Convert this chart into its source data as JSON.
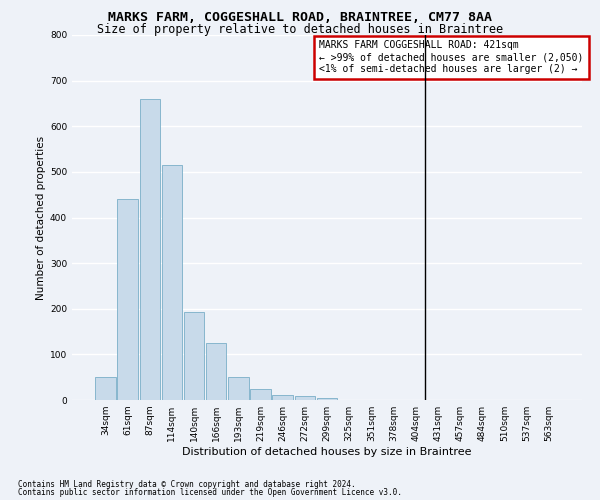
{
  "title": "MARKS FARM, COGGESHALL ROAD, BRAINTREE, CM77 8AA",
  "subtitle": "Size of property relative to detached houses in Braintree",
  "xlabel": "Distribution of detached houses by size in Braintree",
  "ylabel": "Number of detached properties",
  "footnote1": "Contains HM Land Registry data © Crown copyright and database right 2024.",
  "footnote2": "Contains public sector information licensed under the Open Government Licence v3.0.",
  "categories": [
    "34sqm",
    "61sqm",
    "87sqm",
    "114sqm",
    "140sqm",
    "166sqm",
    "193sqm",
    "219sqm",
    "246sqm",
    "272sqm",
    "299sqm",
    "325sqm",
    "351sqm",
    "378sqm",
    "404sqm",
    "431sqm",
    "457sqm",
    "484sqm",
    "510sqm",
    "537sqm",
    "563sqm"
  ],
  "values": [
    50,
    440,
    660,
    515,
    193,
    125,
    50,
    25,
    10,
    8,
    5,
    0,
    0,
    0,
    0,
    0,
    0,
    0,
    0,
    0,
    0
  ],
  "bar_color": "#c8daea",
  "bar_edge_color": "#7aafc8",
  "annotation_text": "MARKS FARM COGGESHALL ROAD: 421sqm\n← >99% of detached houses are smaller (2,050)\n<1% of semi-detached houses are larger (2) →",
  "annotation_box_facecolor": "#ffffff",
  "annotation_box_edgecolor": "#cc0000",
  "vline_x_index": 14.42,
  "ylim": [
    0,
    800
  ],
  "yticks": [
    0,
    100,
    200,
    300,
    400,
    500,
    600,
    700,
    800
  ],
  "background_color": "#eef2f8",
  "grid_color": "#ffffff",
  "title_fontsize": 9.5,
  "subtitle_fontsize": 8.5,
  "xlabel_fontsize": 8,
  "ylabel_fontsize": 7.5,
  "tick_fontsize": 6.5,
  "annotation_fontsize": 7,
  "footnote_fontsize": 5.5
}
